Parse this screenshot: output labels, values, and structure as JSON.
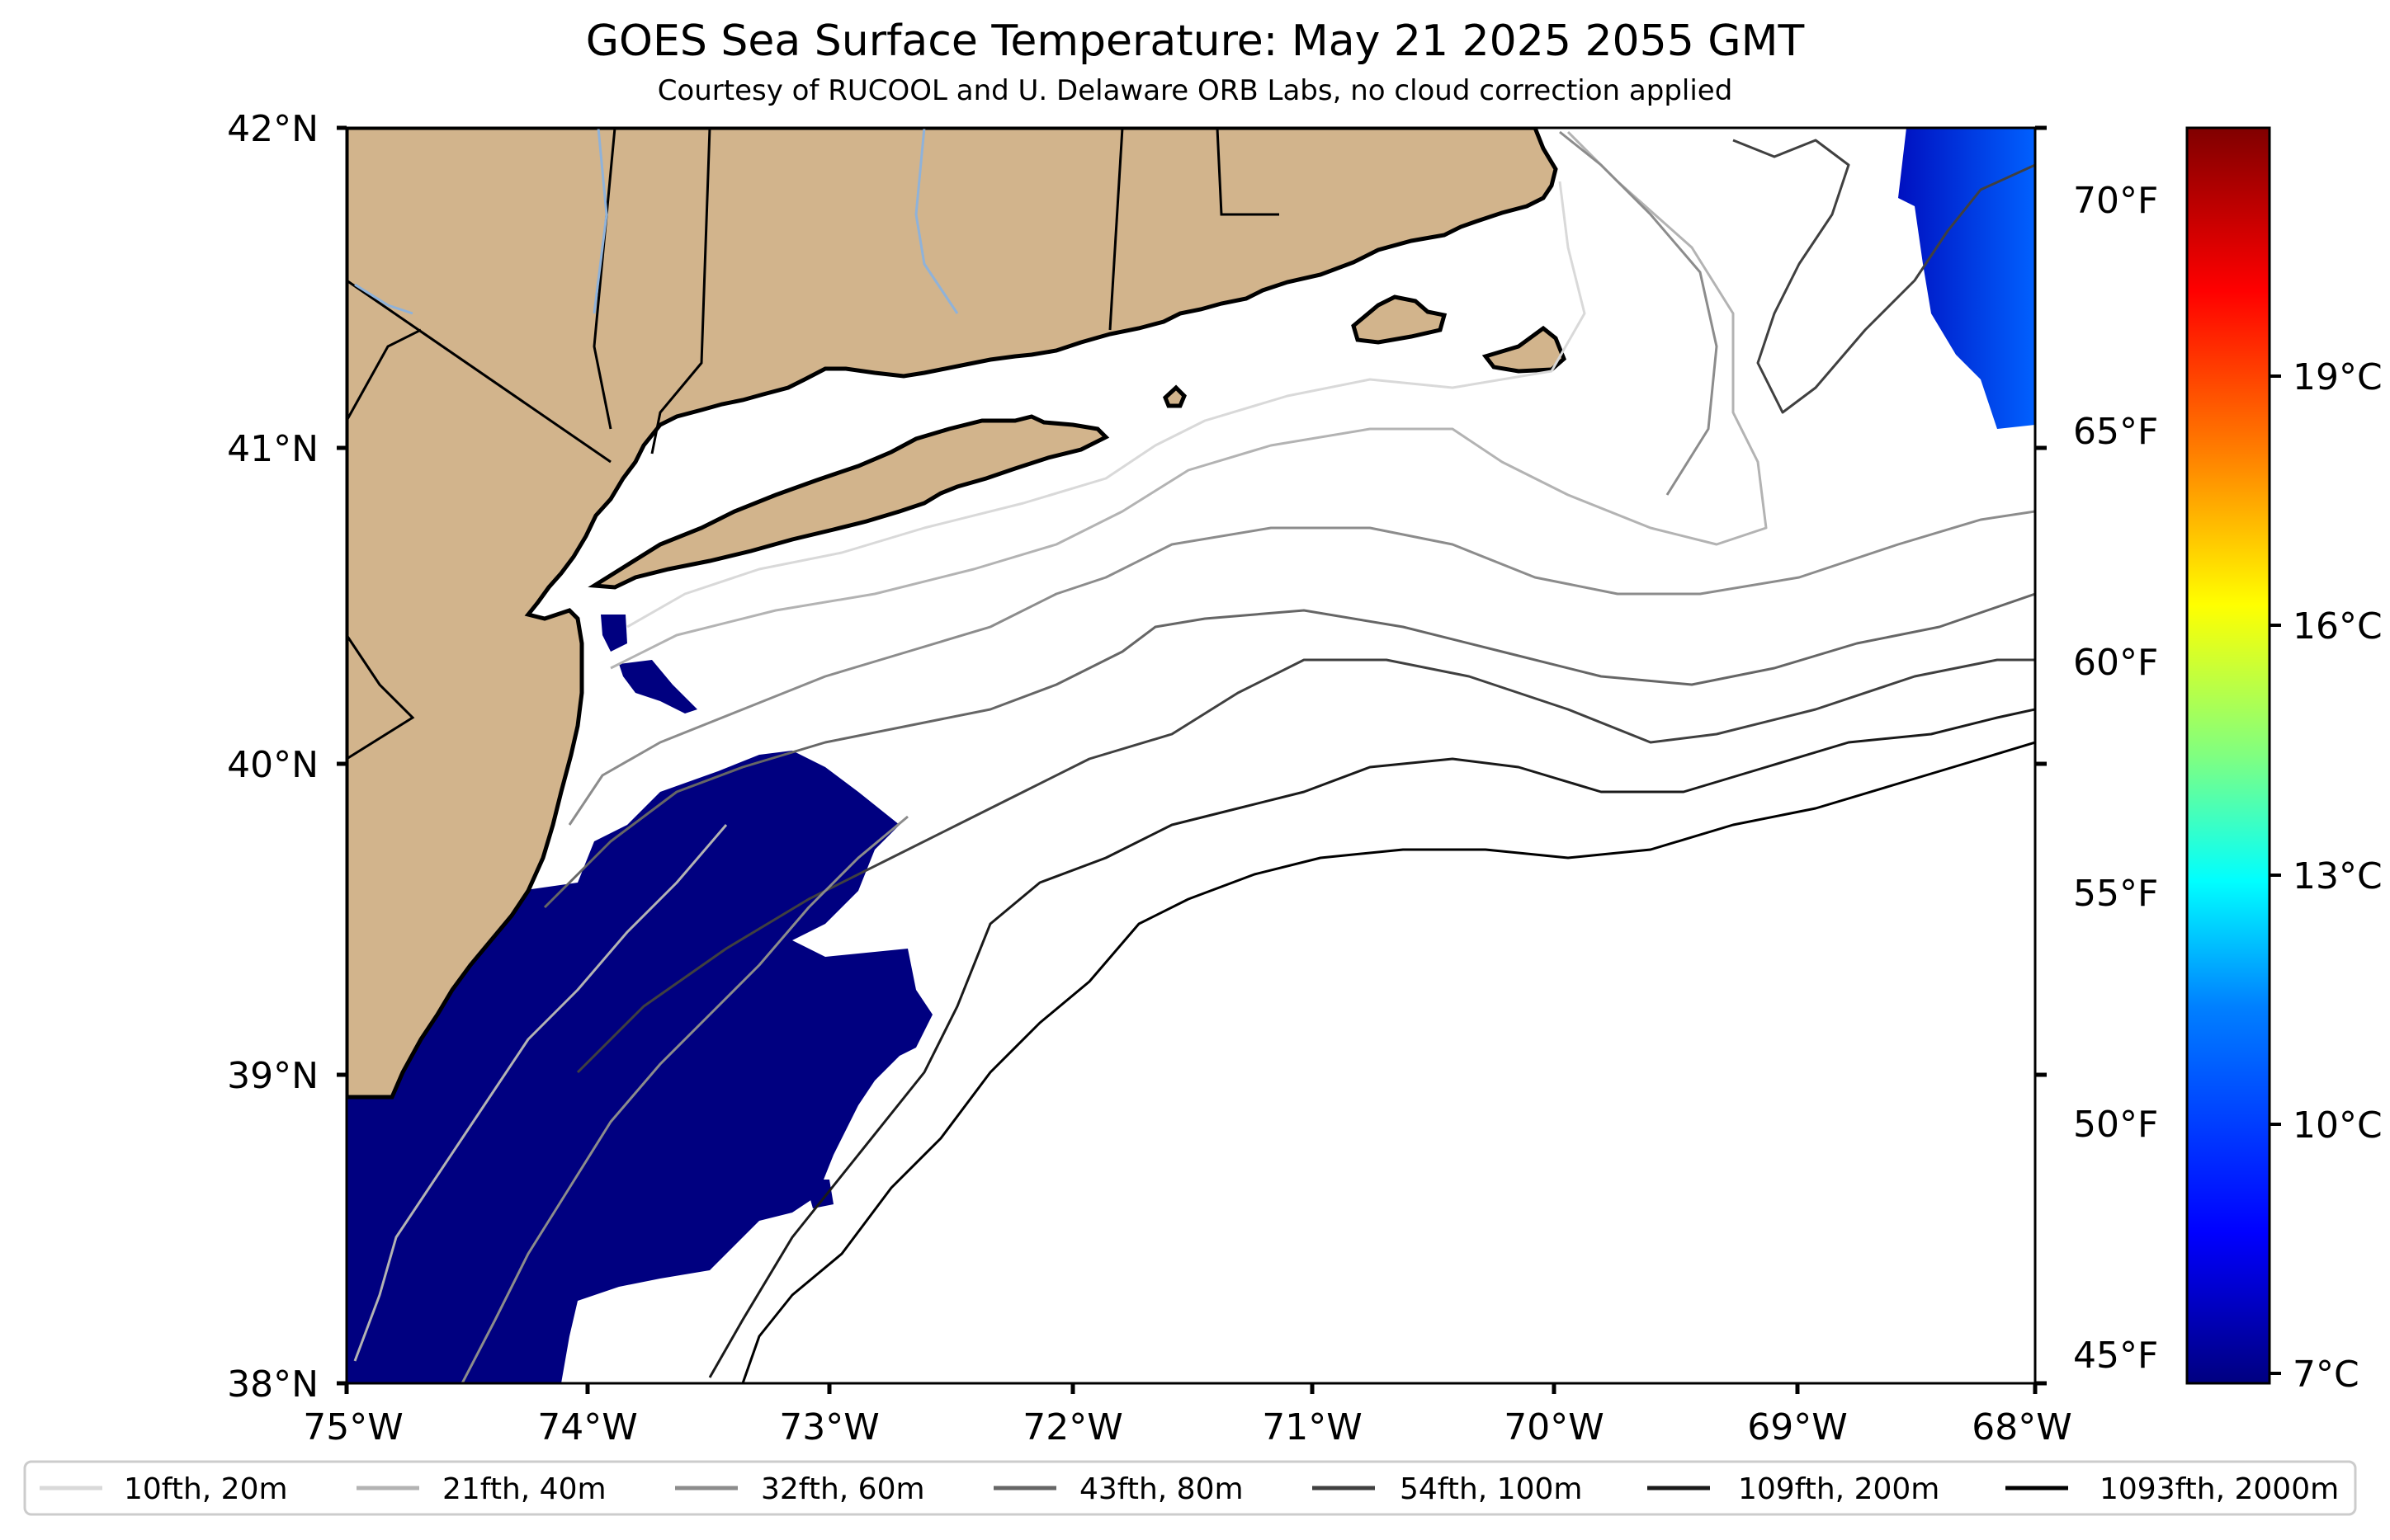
{
  "title": "GOES Sea Surface Temperature: May 21 2025 2055 GMT",
  "subtitle": "Courtesy of RUCOOL and U. Delaware ORB Labs, no cloud correction applied",
  "axes": {
    "lat_labels": [
      "42°N",
      "41°N",
      "40°N",
      "39°N",
      "38°N"
    ],
    "lon_labels": [
      "75°W",
      "74°W",
      "73°W",
      "72°W",
      "71°W",
      "70°W",
      "69°W",
      "68°W"
    ]
  },
  "colorbar": {
    "fahrenheit_labels": [
      "70°F",
      "65°F",
      "60°F",
      "55°F",
      "50°F",
      "45°F"
    ],
    "celsius_labels": [
      "19°C",
      "16°C",
      "13°C",
      "10°C",
      "7°C"
    ],
    "colors": [
      "#000080",
      "#0000ff",
      "#0080ff",
      "#00ffff",
      "#80ff80",
      "#ffff00",
      "#ff8000",
      "#ff0000",
      "#800000"
    ]
  },
  "legend": [
    {
      "label": "10fth, 20m",
      "color": "#d9d9d9"
    },
    {
      "label": "21fth, 40m",
      "color": "#b3b3b3"
    },
    {
      "label": "32fth, 60m",
      "color": "#8c8c8c"
    },
    {
      "label": "43fth, 80m",
      "color": "#666666"
    },
    {
      "label": "54fth, 100m",
      "color": "#404040"
    },
    {
      "label": "109fth, 200m",
      "color": "#1a1a1a"
    },
    {
      "label": "1093fth, 2000m",
      "color": "#000000"
    }
  ],
  "colors": {
    "land": "#d2b48c",
    "cold_water": "#000080",
    "coastline": "#000000"
  }
}
